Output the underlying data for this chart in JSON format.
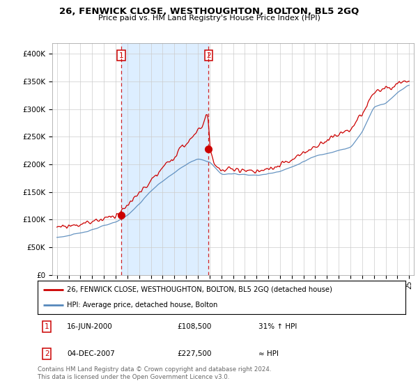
{
  "title": "26, FENWICK CLOSE, WESTHOUGHTON, BOLTON, BL5 2GQ",
  "subtitle": "Price paid vs. HM Land Registry's House Price Index (HPI)",
  "ylim": [
    0,
    420000
  ],
  "yticks": [
    0,
    50000,
    100000,
    150000,
    200000,
    250000,
    300000,
    350000,
    400000
  ],
  "ytick_labels": [
    "£0",
    "£50K",
    "£100K",
    "£150K",
    "£200K",
    "£250K",
    "£300K",
    "£350K",
    "£400K"
  ],
  "sale1_year": 2000.46,
  "sale1_price": 108500,
  "sale2_year": 2007.92,
  "sale2_price": 227500,
  "legend_red": "26, FENWICK CLOSE, WESTHOUGHTON, BOLTON, BL5 2GQ (detached house)",
  "legend_blue": "HPI: Average price, detached house, Bolton",
  "table_row1": [
    "1",
    "16-JUN-2000",
    "£108,500",
    "31% ↑ HPI"
  ],
  "table_row2": [
    "2",
    "04-DEC-2007",
    "£227,500",
    "≈ HPI"
  ],
  "footer": "Contains HM Land Registry data © Crown copyright and database right 2024.\nThis data is licensed under the Open Government Licence v3.0.",
  "red_color": "#cc0000",
  "blue_color": "#5588bb",
  "shade_color": "#ddeeff",
  "bg_color": "#ffffff",
  "grid_color": "#cccccc"
}
